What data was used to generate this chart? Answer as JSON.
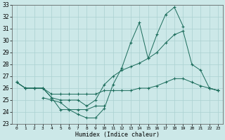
{
  "xlabel": "Humidex (Indice chaleur)",
  "x": [
    0,
    1,
    2,
    3,
    4,
    5,
    6,
    7,
    8,
    9,
    10,
    11,
    12,
    13,
    14,
    15,
    16,
    17,
    18,
    19,
    20,
    21,
    22,
    23
  ],
  "line_zigzag": [
    26.5,
    26.0,
    26.0,
    26.0,
    25.2,
    24.2,
    24.2,
    23.8,
    23.5,
    23.5,
    24.3,
    26.3,
    27.7,
    29.8,
    31.5,
    28.5,
    30.5,
    32.2,
    32.8,
    31.2,
    null,
    null,
    26.0,
    25.8
  ],
  "line_smooth": [
    26.5,
    26.0,
    26.0,
    26.0,
    25.2,
    25.0,
    25.0,
    25.0,
    24.5,
    25.0,
    26.3,
    27.0,
    27.5,
    27.8,
    28.1,
    28.5,
    29.0,
    29.8,
    30.5,
    30.8,
    28.0,
    27.5,
    26.0,
    25.8
  ],
  "line_flat_top": [
    26.5,
    26.0,
    26.0,
    26.0,
    25.5,
    25.5,
    25.5,
    25.5,
    25.5,
    25.5,
    25.8,
    25.8,
    25.8,
    25.8,
    26.0,
    26.0,
    26.2,
    26.5,
    26.8,
    26.8,
    26.5,
    26.2,
    26.0,
    25.8
  ],
  "line_low": [
    null,
    null,
    null,
    25.2,
    25.0,
    24.8,
    24.2,
    24.2,
    24.2,
    24.5,
    24.5,
    null,
    null,
    null,
    null,
    null,
    null,
    null,
    null,
    null,
    null,
    null,
    null,
    null
  ],
  "bg_color": "#cce8e8",
  "grid_color": "#aad0d0",
  "line_color": "#1a6b5a",
  "ylim": [
    23,
    33
  ],
  "yticks": [
    23,
    24,
    25,
    26,
    27,
    28,
    29,
    30,
    31,
    32,
    33
  ],
  "xticks": [
    0,
    1,
    2,
    3,
    4,
    5,
    6,
    7,
    8,
    9,
    10,
    11,
    12,
    13,
    14,
    15,
    16,
    17,
    18,
    19,
    20,
    21,
    22,
    23
  ],
  "figsize": [
    3.2,
    2.0
  ],
  "dpi": 100
}
